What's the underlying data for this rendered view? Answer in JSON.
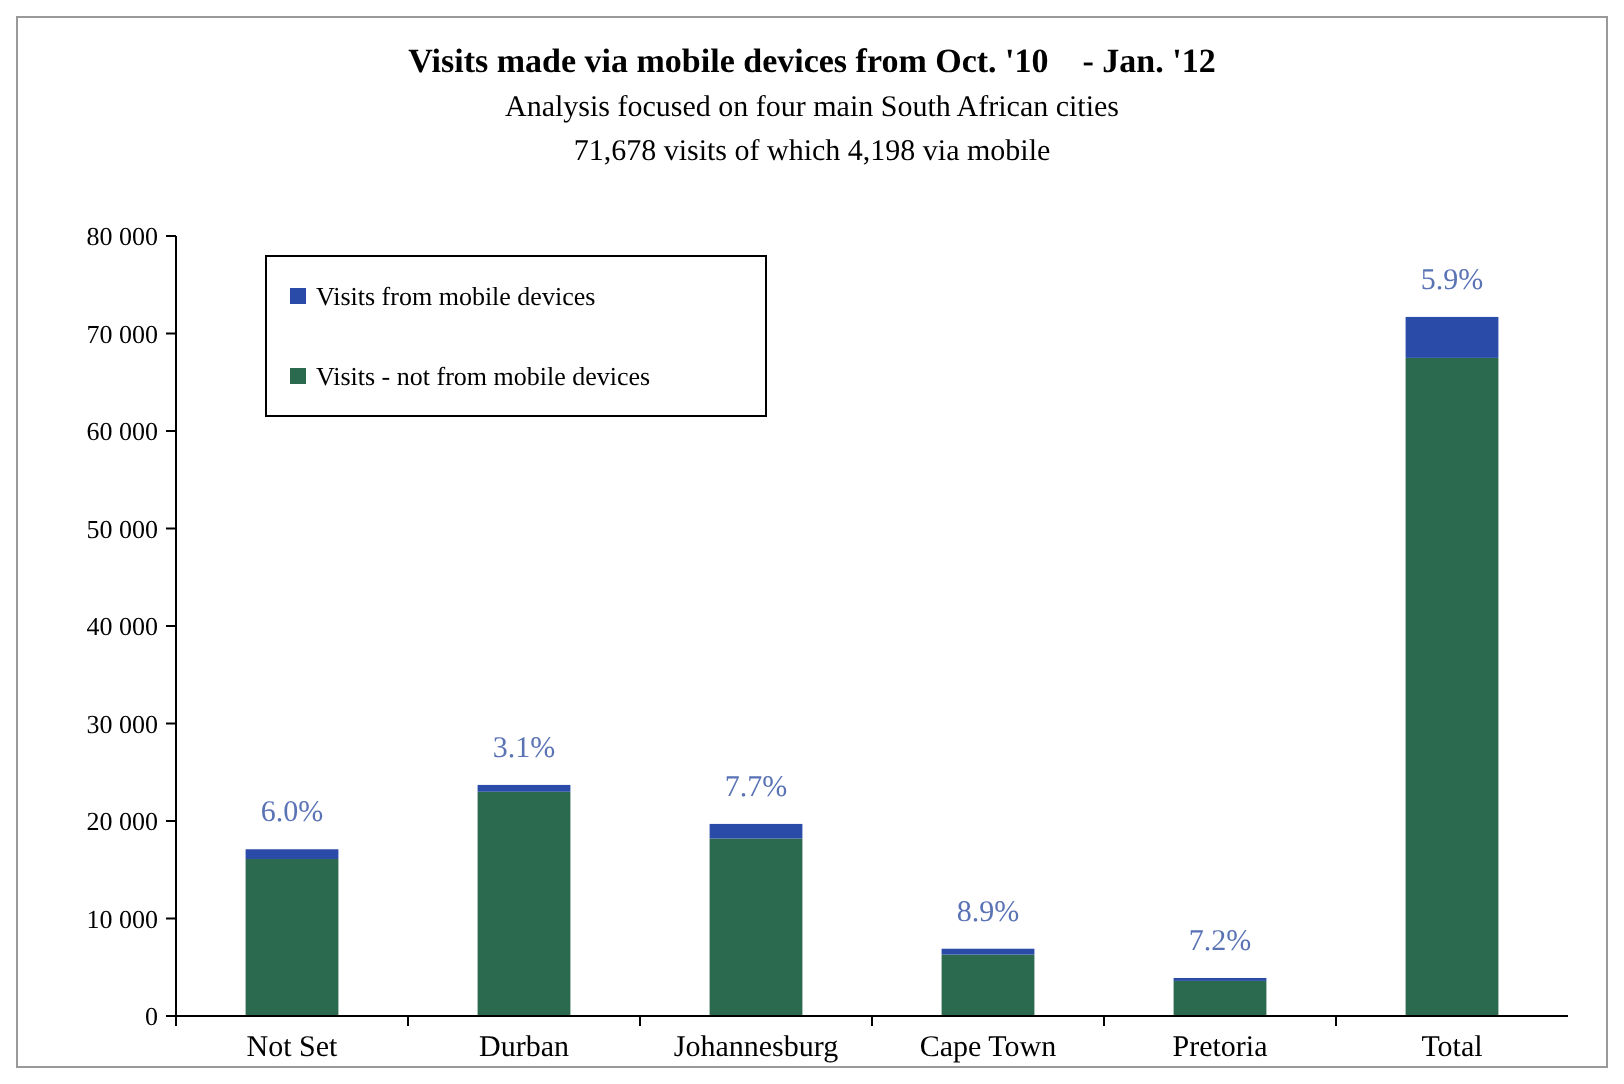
{
  "chart_data": {
    "type": "bar",
    "title": "Visits made via mobile devices from Oct. '10    - Jan. '12",
    "subtitle": "Analysis focused on four main South African cities\n71,678 visits of which 4,198 via mobile",
    "categories": [
      "Not Set",
      "Durban",
      "Johannesburg",
      "Cape Town",
      "Pretoria",
      "Total"
    ],
    "stacked": true,
    "series": [
      {
        "name": "Visits - not from mobile devices",
        "color": "#2b6a4f",
        "values": [
          16100,
          23000,
          18200,
          6300,
          3600,
          67500
        ]
      },
      {
        "name": "Visits from mobile devices",
        "color": "#2a4ba8",
        "values": [
          1000,
          700,
          1500,
          600,
          300,
          4200
        ]
      }
    ],
    "annotations": [
      {
        "text": "6.0%",
        "x": "Not Set",
        "y": 17100
      },
      {
        "text": "3.1%",
        "x": "Durban",
        "y": 23700
      },
      {
        "text": "7.7%",
        "x": "Johannesburg",
        "y": 19700
      },
      {
        "text": "8.9%",
        "x": "Cape Town",
        "y": 6900
      },
      {
        "text": "7.2%",
        "x": "Pretoria",
        "y": 3900
      },
      {
        "text": "5.9%",
        "x": "Total",
        "y": 71700
      }
    ],
    "ylim": [
      0,
      80000
    ],
    "yticks": [
      {
        "value": 0,
        "label": "0"
      },
      {
        "value": 10000,
        "label": "10 000"
      },
      {
        "value": 20000,
        "label": "20 000"
      },
      {
        "value": 30000,
        "label": "30 000"
      },
      {
        "value": 40000,
        "label": "40 000"
      },
      {
        "value": 50000,
        "label": "50 000"
      },
      {
        "value": 60000,
        "label": "60 000"
      },
      {
        "value": 70000,
        "label": "70 000"
      },
      {
        "value": 80000,
        "label": "80 000"
      }
    ],
    "grid": false,
    "legend": "top left"
  }
}
